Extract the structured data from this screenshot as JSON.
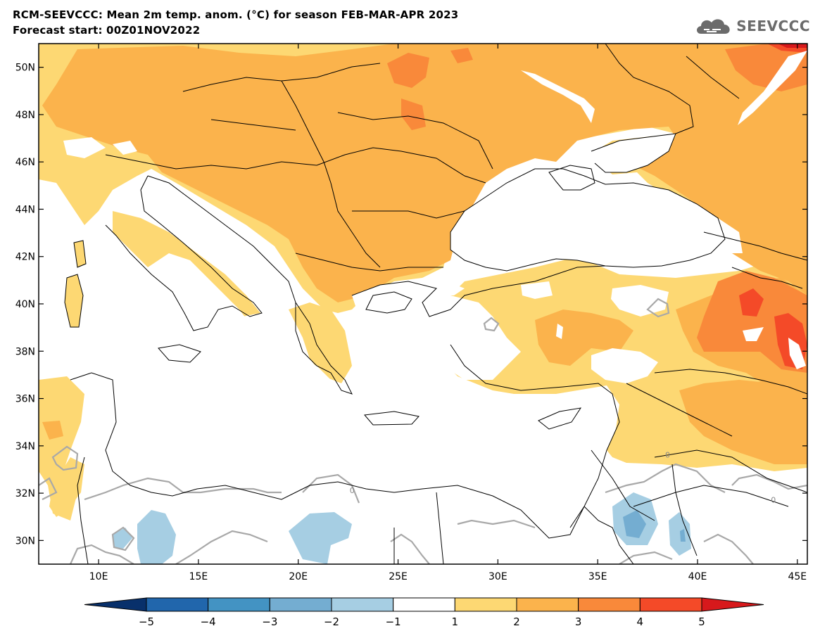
{
  "title_line1": "RCM-SEEVCCC: Mean 2m temp. anom. (°C) for season FEB-MAR-APR 2023",
  "title_line2": "Forecast start: 00Z01NOV2022",
  "logo": {
    "text": "SEEVCCC",
    "icon": "cloud-logo-icon",
    "color": "#6b6b6b"
  },
  "map": {
    "lon_range": [
      7,
      45.5
    ],
    "lat_range": [
      29,
      51
    ],
    "lat_ticks": [
      {
        "lat": 50,
        "label": "50N"
      },
      {
        "lat": 48,
        "label": "48N"
      },
      {
        "lat": 46,
        "label": "46N"
      },
      {
        "lat": 44,
        "label": "44N"
      },
      {
        "lat": 42,
        "label": "42N"
      },
      {
        "lat": 40,
        "label": "40N"
      },
      {
        "lat": 38,
        "label": "38N"
      },
      {
        "lat": 36,
        "label": "36N"
      },
      {
        "lat": 34,
        "label": "34N"
      },
      {
        "lat": 32,
        "label": "32N"
      },
      {
        "lat": 30,
        "label": "30N"
      }
    ],
    "lon_ticks": [
      {
        "lon": 10,
        "label": "10E"
      },
      {
        "lon": 15,
        "label": "15E"
      },
      {
        "lon": 20,
        "label": "20E"
      },
      {
        "lon": 25,
        "label": "25E"
      },
      {
        "lon": 30,
        "label": "30E"
      },
      {
        "lon": 35,
        "label": "35E"
      },
      {
        "lon": 40,
        "label": "40E"
      },
      {
        "lon": 45,
        "label": "45E"
      }
    ],
    "zero_contour_labels": [
      {
        "lon": 22.7,
        "lat": 32.0,
        "label": "0"
      },
      {
        "lon": 38.5,
        "lat": 33.5,
        "label": "0"
      },
      {
        "lon": 43.8,
        "lat": 31.6,
        "label": "0"
      }
    ]
  },
  "colorbar": {
    "labels": [
      "−5",
      "−4",
      "−3",
      "−2",
      "−1",
      "1",
      "2",
      "3",
      "4",
      "5"
    ],
    "colors": [
      "#08306b",
      "#2166ac",
      "#4393c3",
      "#74add1",
      "#a6cee3",
      "#ffffff",
      "#fdd873",
      "#fbb34c",
      "#f9893a",
      "#f44a28",
      "#d7191c"
    ]
  }
}
